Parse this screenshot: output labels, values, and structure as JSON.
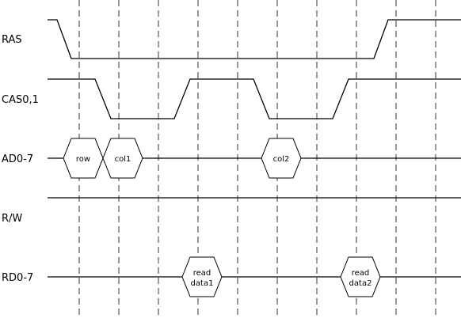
{
  "signals": {
    "ras": "RAS",
    "cas": "CAS0,1",
    "ad": "AD0-7",
    "rw": "R/W",
    "rd": "RD0-7"
  },
  "bus_values": {
    "row": "row",
    "col1": "col1",
    "col2": "col2",
    "read_data1_line1": "read",
    "read_data1_line2": "data1",
    "read_data2_line1": "read",
    "read_data2_line2": "data2"
  }
}
